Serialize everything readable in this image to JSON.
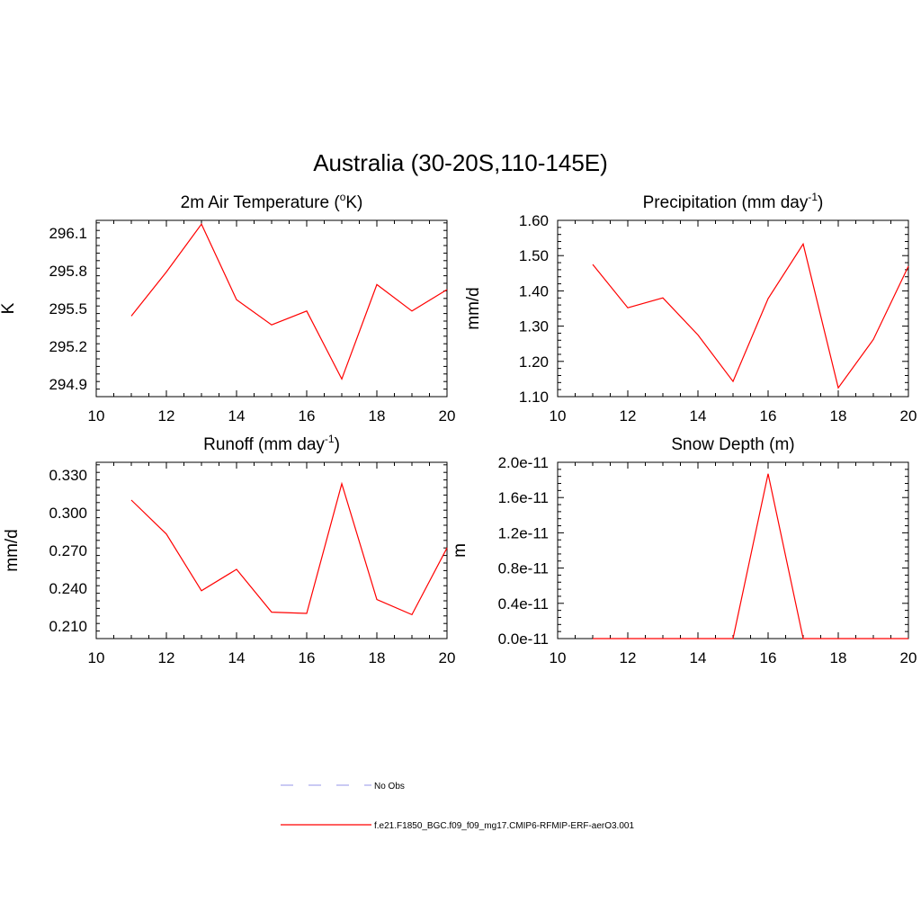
{
  "figure": {
    "title": "Australia (30-20S,110-145E)"
  },
  "chart_data": [
    {
      "type": "line",
      "title": "2m Air Temperature (",
      "title_sup": "o",
      "title_tail": "K)",
      "ylabel": "K",
      "xlabel": "",
      "xlim": [
        10,
        20
      ],
      "xticks": [
        "10",
        "12",
        "14",
        "16",
        "18",
        "20"
      ],
      "ylim": [
        294.8,
        296.2
      ],
      "yticks": [
        294.9,
        295.2,
        295.5,
        295.8,
        296.1
      ],
      "ytick_labels": [
        "294.9",
        "295.2",
        "295.5",
        "295.8",
        "296.1"
      ],
      "x": [
        11,
        12,
        13,
        14,
        15,
        16,
        17,
        18,
        19,
        20
      ],
      "series": [
        {
          "name": "f.e21.F1850_BGC.f09_f09_mg17.CMIP6-RFMIP-ERF-aerO3.001",
          "color": "#ff0000",
          "values": [
            295.44,
            295.79,
            296.17,
            295.57,
            295.37,
            295.48,
            294.94,
            295.69,
            295.48,
            295.65
          ]
        }
      ]
    },
    {
      "type": "line",
      "title": "Precipitation (mm day",
      "title_sup": "-1",
      "title_tail": ")",
      "ylabel": "mm/d",
      "xlabel": "",
      "xlim": [
        10,
        20
      ],
      "xticks": [
        "10",
        "12",
        "14",
        "16",
        "18",
        "20"
      ],
      "ylim": [
        1.1,
        1.6
      ],
      "yticks": [
        1.1,
        1.2,
        1.3,
        1.4,
        1.5,
        1.6
      ],
      "ytick_labels": [
        "1.10",
        "1.20",
        "1.30",
        "1.40",
        "1.50",
        "1.60"
      ],
      "x": [
        11,
        12,
        13,
        14,
        15,
        16,
        17,
        18,
        19,
        20
      ],
      "series": [
        {
          "name": "f.e21.F1850_BGC.f09_f09_mg17.CMIP6-RFMIP-ERF-aerO3.001",
          "color": "#ff0000",
          "values": [
            1.475,
            1.352,
            1.38,
            1.275,
            1.143,
            1.378,
            1.533,
            1.125,
            1.262,
            1.47
          ]
        }
      ]
    },
    {
      "type": "line",
      "title": "Runoff (mm day",
      "title_sup": "-1",
      "title_tail": ")",
      "ylabel": "mm/d",
      "xlabel": "",
      "xlim": [
        10,
        20
      ],
      "xticks": [
        "10",
        "12",
        "14",
        "16",
        "18",
        "20"
      ],
      "ylim": [
        0.2,
        0.34
      ],
      "yticks": [
        0.21,
        0.24,
        0.27,
        0.3,
        0.33
      ],
      "ytick_labels": [
        "0.210",
        "0.240",
        "0.270",
        "0.300",
        "0.330"
      ],
      "x": [
        11,
        12,
        13,
        14,
        15,
        16,
        17,
        18,
        19,
        20
      ],
      "series": [
        {
          "name": "f.e21.F1850_BGC.f09_f09_mg17.CMIP6-RFMIP-ERF-aerO3.001",
          "color": "#ff0000",
          "values": [
            0.31,
            0.283,
            0.238,
            0.255,
            0.221,
            0.22,
            0.323,
            0.231,
            0.219,
            0.272
          ]
        }
      ]
    },
    {
      "type": "line",
      "title": "Snow Depth (m)",
      "title_sup": "",
      "title_tail": "",
      "ylabel": "m",
      "xlabel": "",
      "xlim": [
        10,
        20
      ],
      "xticks": [
        "10",
        "12",
        "14",
        "16",
        "18",
        "20"
      ],
      "ylim": [
        0,
        2e-11
      ],
      "yticks": [
        0,
        4e-12,
        8e-12,
        1.2e-11,
        1.6e-11,
        2e-11
      ],
      "ytick_labels": [
        "0.0e-11",
        "0.4e-11",
        "0.8e-11",
        "1.2e-11",
        "1.6e-11",
        "2.0e-11"
      ],
      "x": [
        11,
        12,
        13,
        14,
        15,
        16,
        17,
        18,
        19,
        20
      ],
      "series": [
        {
          "name": "f.e21.F1850_BGC.f09_f09_mg17.CMIP6-RFMIP-ERF-aerO3.001",
          "color": "#ff0000",
          "values": [
            0,
            0,
            0,
            0,
            0,
            1.87e-11,
            0,
            0,
            0,
            0
          ]
        }
      ]
    }
  ],
  "legend": {
    "items": [
      {
        "label": "No Obs",
        "color": "#aaaaee",
        "style": "dashed"
      },
      {
        "label": "f.e21.F1850_BGC.f09_f09_mg17.CMIP6-RFMIP-ERF-aerO3.001",
        "color": "#ff0000",
        "style": "solid"
      }
    ]
  }
}
